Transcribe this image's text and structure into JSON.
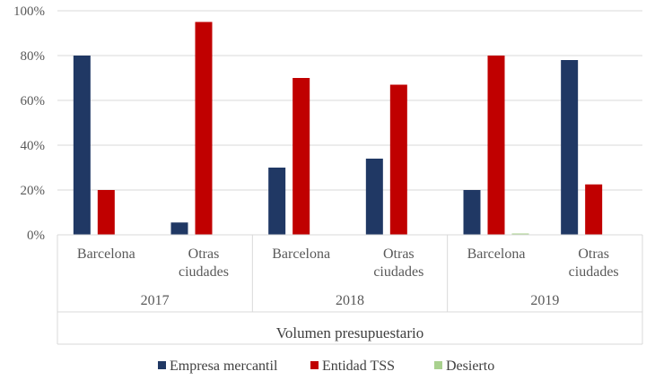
{
  "chart_data": {
    "type": "bar",
    "groups": [
      "2017",
      "2018",
      "2019"
    ],
    "categories": [
      "Barcelona",
      "Otras ciudades",
      "Barcelona",
      "Otras ciudades",
      "Barcelona",
      "Otras ciudades"
    ],
    "series": [
      {
        "name": "Empresa mercantil",
        "color": "#203864",
        "values": [
          80,
          5.5,
          30,
          34,
          20,
          78
        ]
      },
      {
        "name": "Entidad TSS",
        "color": "#c00000",
        "values": [
          20,
          95,
          70,
          67,
          80,
          22.5
        ]
      },
      {
        "name": "Desierto",
        "color": "#a9d18e",
        "values": [
          0,
          0,
          0,
          0,
          0.5,
          0
        ]
      }
    ],
    "yticks": [
      "0%",
      "20%",
      "40%",
      "60%",
      "80%",
      "100%"
    ],
    "ylim": [
      0,
      100
    ],
    "xlabel": "Volumen presupuestario",
    "ylabel": "",
    "grid": true,
    "legend_position": "bottom"
  }
}
